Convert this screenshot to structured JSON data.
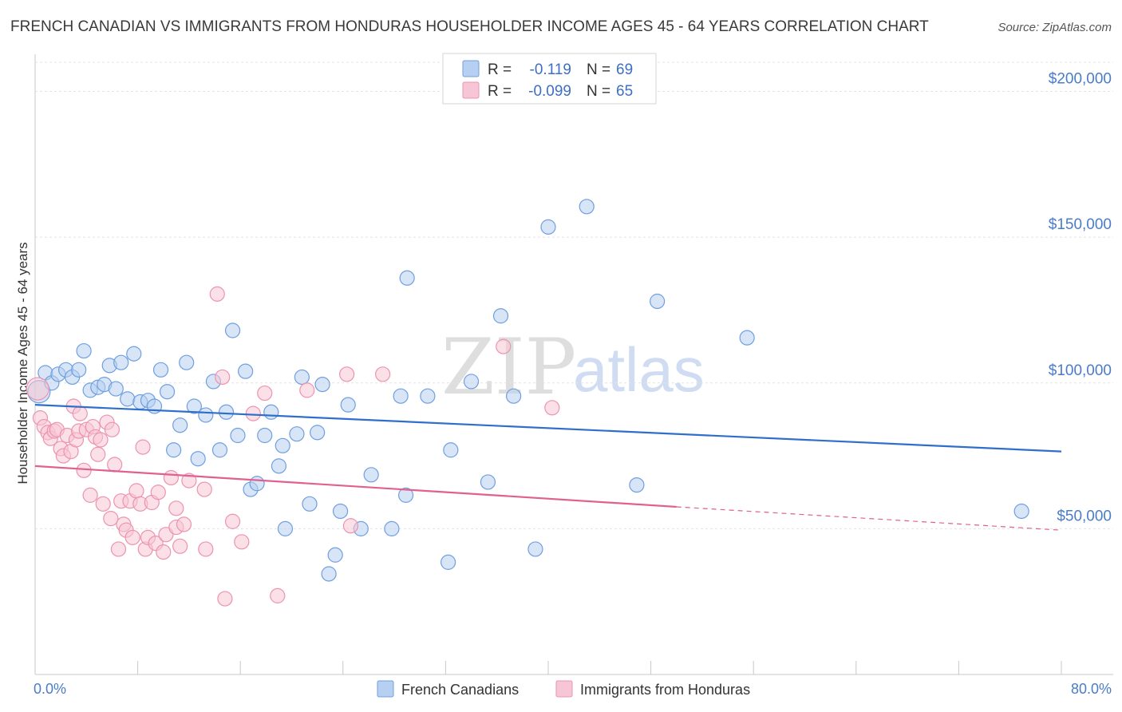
{
  "chart_data": {
    "type": "scatter",
    "title": "FRENCH CANADIAN VS IMMIGRANTS FROM HONDURAS HOUSEHOLDER INCOME AGES 45 - 64 YEARS CORRELATION CHART",
    "source": "Source: ZipAtlas.com",
    "ylabel": "Householder Income Ages 45 - 64 years",
    "xlabel": "",
    "xlim": [
      0,
      80
    ],
    "ylim": [
      0,
      210000
    ],
    "y_ticks": [
      {
        "value": 50000,
        "label": "$50,000"
      },
      {
        "value": 100000,
        "label": "$100,000"
      },
      {
        "value": 150000,
        "label": "$150,000"
      },
      {
        "value": 200000,
        "label": "$200,000"
      }
    ],
    "x_tick_labels": {
      "min": "0.0%",
      "max": "80.0%"
    },
    "grid": true,
    "legend_position": "top-center",
    "watermark": {
      "zip": "ZIP",
      "atlas": "atlas"
    },
    "series": [
      {
        "name": "French Canadians",
        "color": "#6f9fe0",
        "fill": "#b7cff0",
        "line_color": "#2f6fcc",
        "R": "-0.119",
        "N": "69",
        "trend": {
          "x0": 0,
          "y0": 92500,
          "x1": 80,
          "y1": 76500
        },
        "points": [
          [
            0.3,
            97000
          ],
          [
            0.8,
            103500
          ],
          [
            1.3,
            100000
          ],
          [
            1.8,
            103000
          ],
          [
            2.4,
            104500
          ],
          [
            2.9,
            102000
          ],
          [
            3.4,
            104500
          ],
          [
            3.8,
            111000
          ],
          [
            4.3,
            97500
          ],
          [
            4.9,
            98500
          ],
          [
            5.4,
            99500
          ],
          [
            5.8,
            106000
          ],
          [
            6.3,
            98000
          ],
          [
            6.7,
            107000
          ],
          [
            7.2,
            94500
          ],
          [
            7.7,
            110000
          ],
          [
            8.2,
            93500
          ],
          [
            8.8,
            94000
          ],
          [
            9.3,
            92000
          ],
          [
            9.8,
            104500
          ],
          [
            10.3,
            97000
          ],
          [
            10.8,
            77000
          ],
          [
            11.3,
            85500
          ],
          [
            11.8,
            107000
          ],
          [
            12.4,
            92000
          ],
          [
            12.7,
            74000
          ],
          [
            13.3,
            89000
          ],
          [
            13.9,
            100500
          ],
          [
            14.4,
            77000
          ],
          [
            14.9,
            90000
          ],
          [
            15.4,
            118000
          ],
          [
            15.8,
            82000
          ],
          [
            16.4,
            104000
          ],
          [
            16.8,
            63500
          ],
          [
            17.3,
            65500
          ],
          [
            17.9,
            82000
          ],
          [
            18.4,
            90000
          ],
          [
            19.0,
            71500
          ],
          [
            19.3,
            78500
          ],
          [
            19.5,
            50000
          ],
          [
            20.4,
            82500
          ],
          [
            20.8,
            102000
          ],
          [
            21.4,
            58500
          ],
          [
            22.0,
            83000
          ],
          [
            22.4,
            99500
          ],
          [
            22.9,
            34500
          ],
          [
            23.4,
            41000
          ],
          [
            23.8,
            56000
          ],
          [
            24.4,
            92500
          ],
          [
            25.4,
            50000
          ],
          [
            26.2,
            68500
          ],
          [
            27.8,
            50000
          ],
          [
            28.5,
            95500
          ],
          [
            28.9,
            61500
          ],
          [
            29.0,
            136000
          ],
          [
            30.6,
            95500
          ],
          [
            32.2,
            38500
          ],
          [
            32.4,
            77000
          ],
          [
            34.0,
            100500
          ],
          [
            35.3,
            66000
          ],
          [
            36.3,
            123000
          ],
          [
            37.3,
            95500
          ],
          [
            39.0,
            43000
          ],
          [
            40.0,
            153500
          ],
          [
            43.0,
            160500
          ],
          [
            46.9,
            65000
          ],
          [
            48.5,
            128000
          ],
          [
            55.5,
            115500
          ],
          [
            76.9,
            56000
          ]
        ]
      },
      {
        "name": "Immigrants from Honduras",
        "color": "#ec93b0",
        "fill": "#f7c6d6",
        "line_color": "#e0608f",
        "R": "-0.099",
        "N": "65",
        "trend": {
          "x0": 0,
          "y0": 71500,
          "x1": 50,
          "y1": 57500
        },
        "trend_dash": {
          "x0": 50,
          "y0": 57500,
          "x1": 80,
          "y1": 49500
        },
        "points": [
          [
            0.2,
            98000
          ],
          [
            0.4,
            88000
          ],
          [
            0.7,
            85000
          ],
          [
            1.0,
            83000
          ],
          [
            1.2,
            81000
          ],
          [
            1.5,
            83500
          ],
          [
            1.7,
            84000
          ],
          [
            2.0,
            77500
          ],
          [
            2.2,
            75000
          ],
          [
            2.5,
            82000
          ],
          [
            2.8,
            76500
          ],
          [
            3.0,
            92000
          ],
          [
            3.2,
            80500
          ],
          [
            3.4,
            83500
          ],
          [
            3.5,
            89500
          ],
          [
            3.8,
            70000
          ],
          [
            4.0,
            84000
          ],
          [
            4.3,
            61500
          ],
          [
            4.5,
            85000
          ],
          [
            4.7,
            81500
          ],
          [
            4.9,
            75500
          ],
          [
            5.1,
            80500
          ],
          [
            5.3,
            58500
          ],
          [
            5.6,
            86500
          ],
          [
            5.9,
            53500
          ],
          [
            6.0,
            84000
          ],
          [
            6.2,
            72000
          ],
          [
            6.5,
            43000
          ],
          [
            6.7,
            59500
          ],
          [
            6.9,
            51500
          ],
          [
            7.1,
            49500
          ],
          [
            7.4,
            59500
          ],
          [
            7.6,
            47000
          ],
          [
            7.9,
            63000
          ],
          [
            8.2,
            58500
          ],
          [
            8.4,
            78000
          ],
          [
            8.6,
            43000
          ],
          [
            8.8,
            47000
          ],
          [
            9.1,
            59000
          ],
          [
            9.4,
            45000
          ],
          [
            9.6,
            62500
          ],
          [
            10.0,
            42000
          ],
          [
            10.2,
            48000
          ],
          [
            10.6,
            67500
          ],
          [
            11.0,
            57000
          ],
          [
            11.0,
            50500
          ],
          [
            11.3,
            44000
          ],
          [
            11.6,
            51500
          ],
          [
            12.0,
            66500
          ],
          [
            13.2,
            63500
          ],
          [
            13.3,
            43000
          ],
          [
            14.2,
            130500
          ],
          [
            14.6,
            102000
          ],
          [
            14.8,
            26000
          ],
          [
            15.4,
            52500
          ],
          [
            16.1,
            45500
          ],
          [
            17.0,
            89500
          ],
          [
            17.9,
            96500
          ],
          [
            18.9,
            27000
          ],
          [
            21.2,
            97500
          ],
          [
            24.3,
            103000
          ],
          [
            24.6,
            51000
          ],
          [
            27.1,
            103000
          ],
          [
            36.5,
            112500
          ],
          [
            40.3,
            91500
          ]
        ]
      }
    ]
  }
}
